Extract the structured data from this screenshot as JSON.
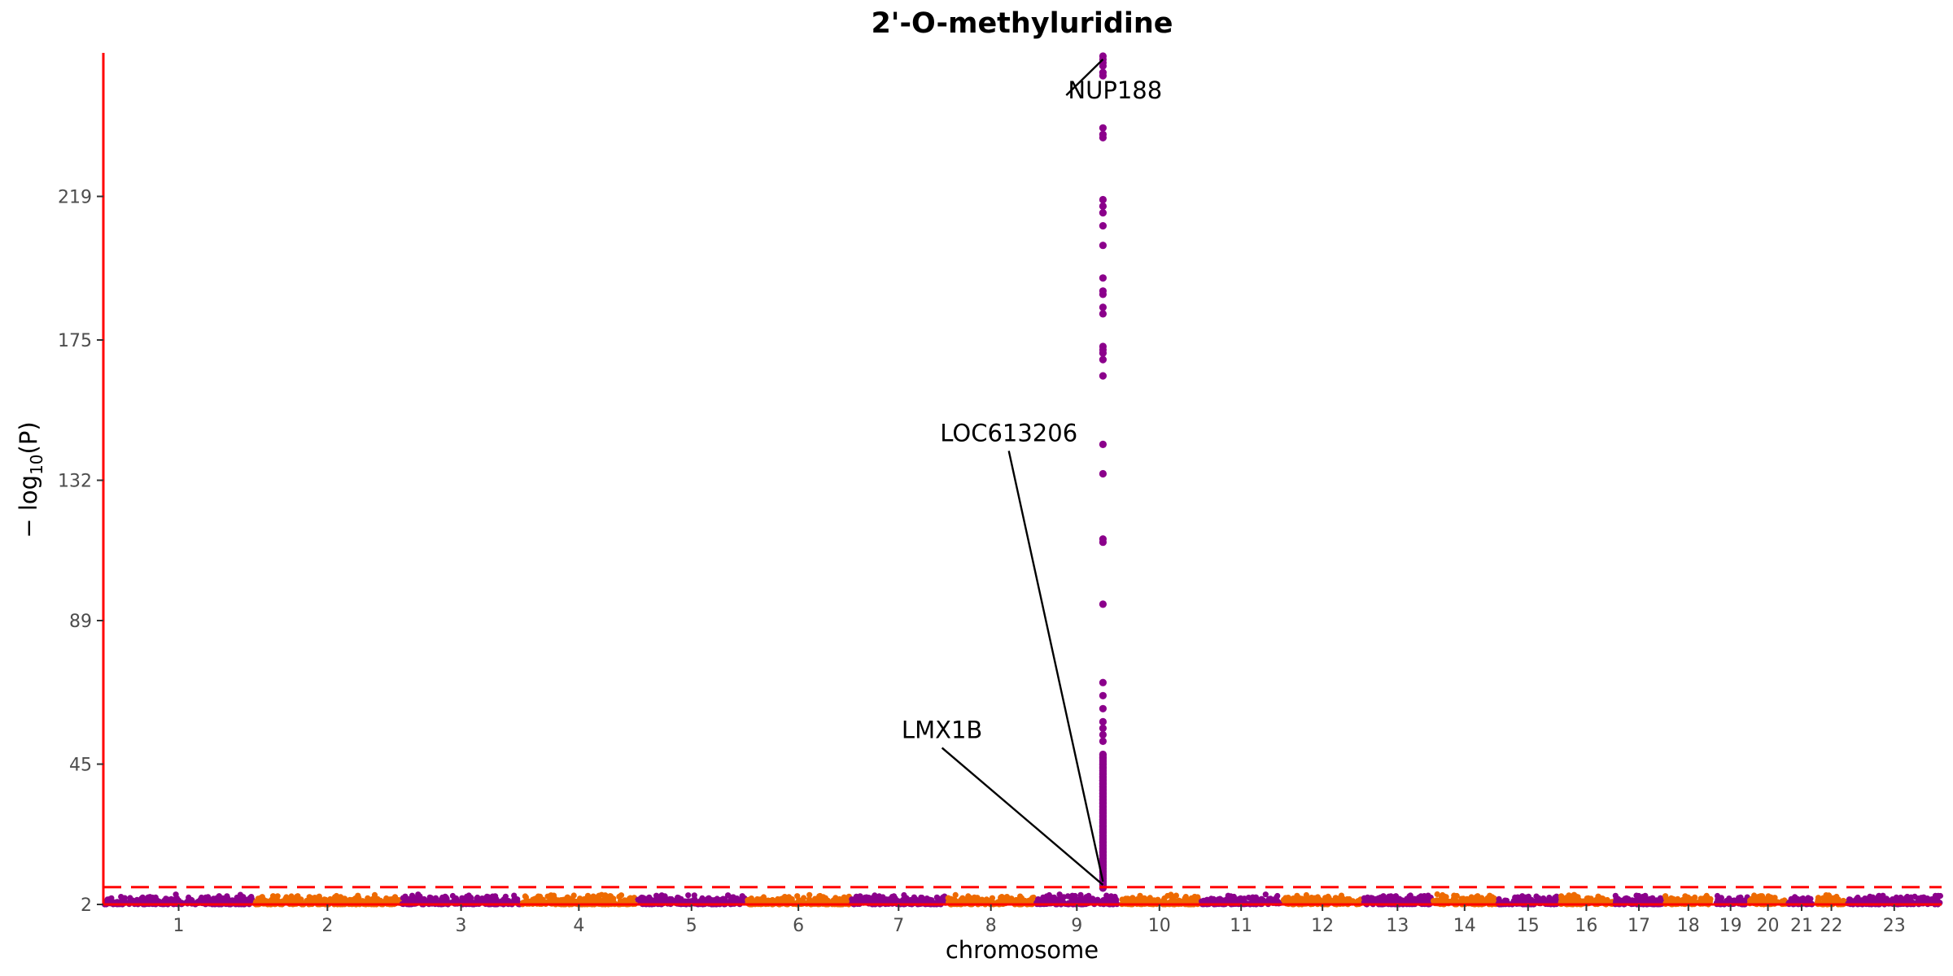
{
  "chart_data": {
    "type": "scatter",
    "title": "2'-O-methyluridine",
    "xlabel": "chromosome",
    "ylabel_prefix": "− log",
    "ylabel_sub": "10",
    "ylabel_suffix": "(P)",
    "ylim": [
      2,
      263
    ],
    "yticks": [
      2,
      45,
      89,
      132,
      175,
      219
    ],
    "significance_threshold": 7.3,
    "grid": false,
    "legend": "none",
    "colors": {
      "odd_chromosome": "#8B008B",
      "even_chromosome": "#EE6A00",
      "axis_line": "#FF0000",
      "threshold_line": "#FF0000",
      "text": "#000000",
      "tick_text": "#4d4d4d"
    },
    "chromosomes": [
      {
        "label": "1",
        "start": 0,
        "end": 248
      },
      {
        "label": "2",
        "start": 248,
        "end": 490
      },
      {
        "label": "3",
        "start": 490,
        "end": 688
      },
      {
        "label": "4",
        "start": 688,
        "end": 878
      },
      {
        "label": "5",
        "start": 878,
        "end": 1059
      },
      {
        "label": "6",
        "start": 1059,
        "end": 1230
      },
      {
        "label": "7",
        "start": 1230,
        "end": 1389
      },
      {
        "label": "8",
        "start": 1389,
        "end": 1534
      },
      {
        "label": "9",
        "start": 1534,
        "end": 1672
      },
      {
        "label": "10",
        "start": 1672,
        "end": 1806
      },
      {
        "label": "11",
        "start": 1806,
        "end": 1941
      },
      {
        "label": "12",
        "start": 1941,
        "end": 2074
      },
      {
        "label": "13",
        "start": 2074,
        "end": 2188
      },
      {
        "label": "14",
        "start": 2188,
        "end": 2295
      },
      {
        "label": "15",
        "start": 2295,
        "end": 2397
      },
      {
        "label": "16",
        "start": 2397,
        "end": 2487
      },
      {
        "label": "17",
        "start": 2487,
        "end": 2570
      },
      {
        "label": "18",
        "start": 2570,
        "end": 2650
      },
      {
        "label": "19",
        "start": 2650,
        "end": 2709
      },
      {
        "label": "20",
        "start": 2709,
        "end": 2773
      },
      {
        "label": "21",
        "start": 2773,
        "end": 2820
      },
      {
        "label": "22",
        "start": 2820,
        "end": 2871
      },
      {
        "label": "23",
        "start": 2871,
        "end": 3027
      }
    ],
    "peak": {
      "chromosome": "9",
      "x": 1646,
      "y_values": [
        7,
        8,
        9,
        10,
        11,
        12,
        13,
        14,
        15,
        16,
        17,
        18,
        19,
        20,
        21,
        22,
        23,
        24,
        25,
        26,
        27,
        28,
        29,
        30,
        31,
        32,
        33,
        34,
        35,
        36,
        37,
        38,
        39,
        40,
        41,
        42,
        43,
        44,
        45,
        46,
        47,
        48,
        52,
        54,
        56,
        58,
        62,
        66,
        70,
        94,
        113,
        114,
        134,
        143,
        164,
        169,
        171,
        172,
        173,
        183,
        185,
        189,
        190,
        194,
        204,
        210,
        214,
        216,
        218,
        237,
        238,
        240,
        256,
        257,
        259,
        260,
        261,
        262
      ]
    },
    "annotations": [
      {
        "gene": "NUP188",
        "point": [
          1646,
          261
        ],
        "label_pos": [
          1666,
          249
        ]
      },
      {
        "gene": "LOC613206",
        "point": [
          1646,
          9
        ],
        "label_pos": [
          1491,
          144
        ]
      },
      {
        "gene": "LMX1B",
        "point": [
          1646,
          8
        ],
        "label_pos": [
          1381,
          53
        ]
      }
    ]
  }
}
